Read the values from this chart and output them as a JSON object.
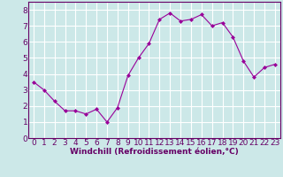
{
  "x": [
    0,
    1,
    2,
    3,
    4,
    5,
    6,
    7,
    8,
    9,
    10,
    11,
    12,
    13,
    14,
    15,
    16,
    17,
    18,
    19,
    20,
    21,
    22,
    23
  ],
  "y": [
    3.5,
    3.0,
    2.3,
    1.7,
    1.7,
    1.5,
    1.8,
    1.0,
    1.9,
    3.9,
    5.0,
    5.9,
    7.4,
    7.8,
    7.3,
    7.4,
    7.7,
    7.0,
    7.2,
    6.3,
    4.8,
    3.8,
    4.4,
    4.6
  ],
  "xlabel": "Windchill (Refroidissement éolien,°C)",
  "ylim": [
    0,
    8.5
  ],
  "xlim": [
    -0.5,
    23.5
  ],
  "yticks": [
    0,
    1,
    2,
    3,
    4,
    5,
    6,
    7,
    8
  ],
  "xticks": [
    0,
    1,
    2,
    3,
    4,
    5,
    6,
    7,
    8,
    9,
    10,
    11,
    12,
    13,
    14,
    15,
    16,
    17,
    18,
    19,
    20,
    21,
    22,
    23
  ],
  "line_color": "#990099",
  "marker": "D",
  "marker_size": 2.0,
  "bg_color": "#cce8e8",
  "grid_color": "#ffffff",
  "xlabel_fontsize": 6.5,
  "tick_fontsize": 6.5,
  "line_width": 0.8
}
